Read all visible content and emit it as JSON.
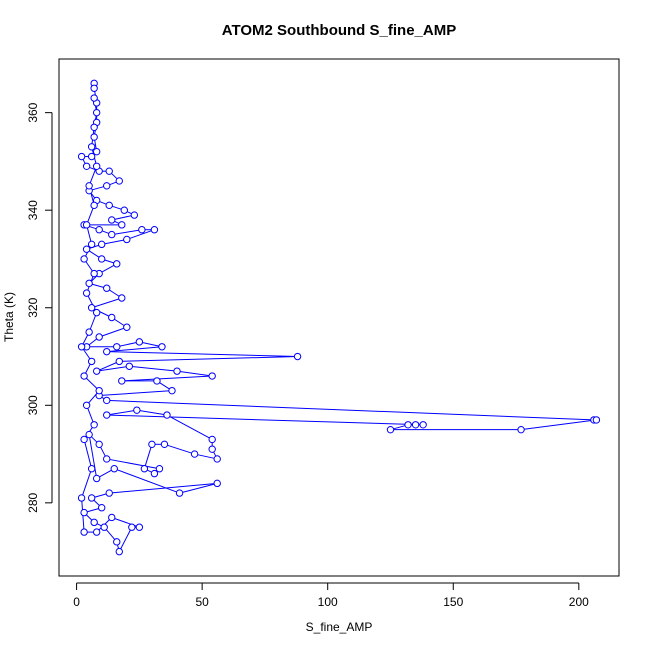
{
  "chart_data": {
    "type": "line",
    "title": "ATOM2 Southbound S_fine_AMP",
    "xlabel": "S_fine_AMP",
    "ylabel": "Theta (K)",
    "xlim": [
      -7,
      216
    ],
    "ylim": [
      265,
      371
    ],
    "xticks": [
      0,
      50,
      100,
      150,
      200
    ],
    "yticks": [
      280,
      300,
      320,
      340,
      360
    ],
    "grid": false,
    "legend": "none",
    "colors": {
      "series": "#0000ff",
      "axes": "#000000"
    },
    "marker": "open-circle",
    "series": [
      {
        "points": [
          [
            7,
            366
          ],
          [
            7,
            365
          ],
          [
            8,
            362
          ],
          [
            8,
            358
          ],
          [
            7,
            355
          ],
          [
            8,
            352
          ],
          [
            6,
            351
          ],
          [
            2,
            351
          ],
          [
            4,
            349
          ],
          [
            9,
            348
          ],
          [
            13,
            348
          ],
          [
            17,
            346
          ],
          [
            12,
            345
          ],
          [
            5,
            344
          ],
          [
            8,
            342
          ],
          [
            13,
            341
          ],
          [
            19,
            340
          ],
          [
            23,
            339
          ],
          [
            14,
            338
          ],
          [
            18,
            337
          ],
          [
            3,
            337
          ],
          [
            9,
            336
          ],
          [
            14,
            335
          ],
          [
            26,
            336
          ],
          [
            31,
            336
          ],
          [
            20,
            334
          ],
          [
            10,
            333
          ],
          [
            4,
            332
          ],
          [
            10,
            330
          ],
          [
            16,
            329
          ],
          [
            9,
            327
          ],
          [
            5,
            325
          ],
          [
            12,
            324
          ],
          [
            18,
            322
          ],
          [
            6,
            320
          ],
          [
            14,
            318
          ],
          [
            20,
            316
          ],
          [
            9,
            314
          ],
          [
            4,
            312
          ],
          [
            16,
            312
          ],
          [
            25,
            313
          ],
          [
            34,
            312
          ],
          [
            12,
            311
          ],
          [
            88,
            310
          ],
          [
            17,
            309
          ],
          [
            8,
            307
          ],
          [
            21,
            308
          ],
          [
            40,
            307
          ],
          [
            54,
            306
          ],
          [
            18,
            305
          ],
          [
            32,
            305
          ],
          [
            38,
            303
          ],
          [
            9,
            302
          ],
          [
            12,
            301
          ],
          [
            206,
            297
          ],
          [
            207,
            297
          ],
          [
            177,
            295
          ],
          [
            125,
            295
          ],
          [
            132,
            296
          ],
          [
            135,
            296
          ],
          [
            138,
            296
          ],
          [
            12,
            298
          ],
          [
            24,
            299
          ],
          [
            36,
            298
          ],
          [
            54,
            293
          ],
          [
            54,
            291
          ],
          [
            56,
            289
          ],
          [
            47,
            290
          ],
          [
            35,
            292
          ],
          [
            30,
            292
          ],
          [
            27,
            287
          ],
          [
            31,
            286
          ],
          [
            33,
            287
          ],
          [
            12,
            289
          ],
          [
            9,
            292
          ],
          [
            5,
            294
          ],
          [
            8,
            285
          ],
          [
            15,
            287
          ],
          [
            41,
            282
          ],
          [
            56,
            284
          ],
          [
            13,
            282
          ],
          [
            6,
            281
          ],
          [
            10,
            279
          ],
          [
            3,
            278
          ],
          [
            7,
            276
          ],
          [
            11,
            275
          ],
          [
            16,
            272
          ],
          [
            17,
            270
          ],
          [
            22,
            275
          ],
          [
            25,
            275
          ],
          [
            14,
            277
          ],
          [
            8,
            274
          ],
          [
            3,
            274
          ],
          [
            2,
            281
          ],
          [
            6,
            287
          ],
          [
            3,
            293
          ],
          [
            7,
            296
          ],
          [
            4,
            300
          ],
          [
            9,
            303
          ],
          [
            3,
            306
          ],
          [
            6,
            309
          ],
          [
            2,
            312
          ],
          [
            5,
            315
          ],
          [
            8,
            319
          ],
          [
            4,
            323
          ],
          [
            7,
            327
          ],
          [
            3,
            330
          ],
          [
            6,
            333
          ],
          [
            4,
            337
          ],
          [
            7,
            341
          ],
          [
            5,
            345
          ],
          [
            8,
            349
          ],
          [
            6,
            353
          ],
          [
            7,
            357
          ],
          [
            8,
            360
          ],
          [
            7,
            363
          ]
        ]
      }
    ]
  }
}
